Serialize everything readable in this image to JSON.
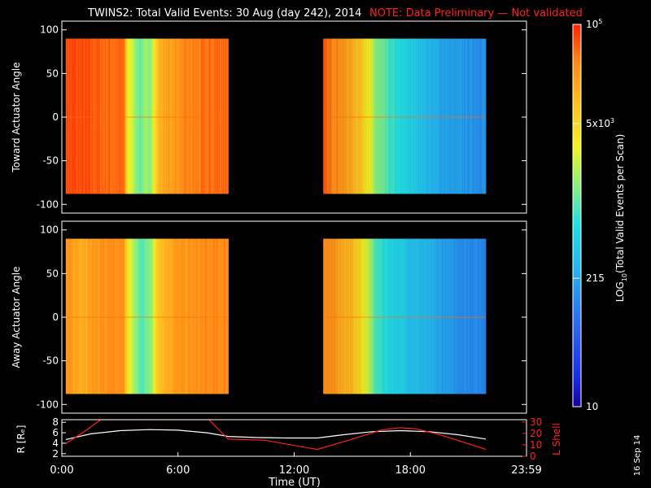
{
  "title": "TWINS2: Total Valid Events: 30 Aug (day 242), 2014",
  "note": "NOTE: Data Preliminary — Not validated",
  "date_stamp": "16 Sep 14",
  "colors": {
    "axis": "#ffffff",
    "note": "#ff2020",
    "r_line": "#ffffff",
    "lshell_line": "#ff2020"
  },
  "chart_data": [
    {
      "type": "heatmap",
      "ylabel": "Toward Actuator Angle",
      "ylim": [
        -110,
        110
      ],
      "yticks": [
        100,
        50,
        0,
        -50,
        -100
      ],
      "y_extent": [
        -88,
        90
      ],
      "xlim": [
        0,
        24
      ],
      "segments": [
        {
          "t_start": 0.2,
          "t_end": 8.6,
          "profile": [
            [
              0,
              0.96
            ],
            [
              1.3,
              0.95
            ],
            [
              2.5,
              0.93
            ],
            [
              3.2,
              0.93
            ],
            [
              3.4,
              0.7
            ],
            [
              4.0,
              0.55
            ],
            [
              4.6,
              0.6
            ],
            [
              5.0,
              0.82
            ],
            [
              5.6,
              0.86
            ],
            [
              6.6,
              0.9
            ],
            [
              7.4,
              0.92
            ],
            [
              8.6,
              0.94
            ]
          ]
        },
        {
          "t_start": 13.5,
          "t_end": 21.9,
          "profile": [
            [
              13.5,
              0.93
            ],
            [
              14.2,
              0.9
            ],
            [
              15.0,
              0.83
            ],
            [
              15.6,
              0.76
            ],
            [
              16.2,
              0.58
            ],
            [
              17.0,
              0.5
            ],
            [
              17.6,
              0.46
            ],
            [
              18.4,
              0.42
            ],
            [
              19.2,
              0.36
            ],
            [
              20.2,
              0.32
            ],
            [
              21.9,
              0.3
            ]
          ]
        }
      ]
    },
    {
      "type": "heatmap",
      "ylabel": "Away Actuator Angle",
      "ylim": [
        -110,
        110
      ],
      "yticks": [
        100,
        50,
        0,
        -50,
        -100
      ],
      "y_extent": [
        -88,
        90
      ],
      "xlim": [
        0,
        24
      ],
      "segments": [
        {
          "t_start": 0.2,
          "t_end": 8.6,
          "profile": [
            [
              0,
              0.88
            ],
            [
              1.0,
              0.84
            ],
            [
              2.0,
              0.88
            ],
            [
              3.2,
              0.88
            ],
            [
              3.5,
              0.66
            ],
            [
              4.1,
              0.52
            ],
            [
              4.6,
              0.58
            ],
            [
              5.0,
              0.8
            ],
            [
              5.8,
              0.86
            ],
            [
              6.8,
              0.88
            ],
            [
              8.6,
              0.9
            ]
          ]
        },
        {
          "t_start": 13.5,
          "t_end": 21.9,
          "profile": [
            [
              13.5,
              0.9
            ],
            [
              14.2,
              0.86
            ],
            [
              15.0,
              0.8
            ],
            [
              15.6,
              0.7
            ],
            [
              16.2,
              0.52
            ],
            [
              17.0,
              0.46
            ],
            [
              17.8,
              0.42
            ],
            [
              18.6,
              0.38
            ],
            [
              19.4,
              0.34
            ],
            [
              20.4,
              0.3
            ],
            [
              21.9,
              0.28
            ]
          ]
        }
      ]
    },
    {
      "type": "line",
      "xlabel": "Time (UT)",
      "xlim": [
        0,
        24
      ],
      "xticks": [
        0,
        6,
        12,
        18,
        24
      ],
      "xtick_labels": [
        "0:00",
        "6:00",
        "12:00",
        "18:00",
        "23:59"
      ],
      "ylabel_left": "R [Rₑ]",
      "ylim_left": [
        1.5,
        8.5
      ],
      "yticks_left": [
        2,
        4,
        6,
        8
      ],
      "ylabel_right": "L Shell",
      "ylim_right": [
        0,
        32
      ],
      "yticks_right": [
        0,
        10,
        20,
        30
      ],
      "series": [
        {
          "axis": "left",
          "x": [
            0.2,
            1.5,
            3.0,
            4.5,
            6.0,
            7.5,
            8.6,
            10.0,
            11.5,
            13.2,
            14.5,
            16.0,
            17.5,
            19.0,
            20.5,
            21.9
          ],
          "values": [
            4.7,
            5.8,
            6.4,
            6.6,
            6.5,
            6.0,
            5.3,
            5.1,
            5.0,
            5.0,
            5.6,
            6.2,
            6.4,
            6.2,
            5.6,
            4.8
          ]
        },
        {
          "axis": "right",
          "x": [
            0.2,
            1.2,
            2.0,
            7.6,
            8.6,
            10.5,
            13.2,
            15.0,
            16.5,
            17.5,
            18.3,
            19.5,
            20.8,
            21.9
          ],
          "values": [
            11,
            22,
            32,
            32,
            15,
            14,
            6,
            15,
            23,
            25,
            24,
            19,
            12,
            6
          ]
        }
      ]
    }
  ],
  "colorbar": {
    "label": "LOG10(Total Valid Events per Scan)",
    "label_main": "LOG",
    "label_sub": "10",
    "label_rest": "(Total Valid Events per Scan)",
    "ticks": [
      {
        "frac": 1.0,
        "text": "10",
        "sup": "5"
      },
      {
        "frac": 0.74,
        "text": "5x10",
        "sup": "3"
      },
      {
        "frac": 0.336,
        "text": "215",
        "sup": ""
      },
      {
        "frac": 0.0,
        "text": "10",
        "sup": ""
      }
    ]
  }
}
